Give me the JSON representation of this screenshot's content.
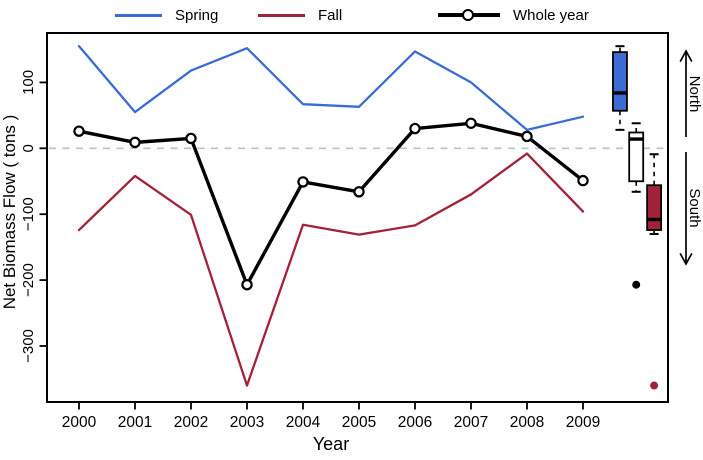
{
  "legend": {
    "items": [
      {
        "label": "Spring",
        "color": "#3b6cd4",
        "marker": "line"
      },
      {
        "label": "Fall",
        "color": "#a12339",
        "marker": "line"
      },
      {
        "label": "Whole year",
        "color": "#000000",
        "marker": "line-circle"
      }
    ]
  },
  "chart_data": {
    "type": "line",
    "title": "",
    "xlabel": "Year",
    "ylabel": "Net Biomass Flow ( tons )",
    "categories": [
      2000,
      2001,
      2002,
      2003,
      2004,
      2005,
      2006,
      2007,
      2008,
      2009
    ],
    "yticks": [
      100,
      0,
      -100,
      -200,
      -300
    ],
    "ylim": [
      -385,
      175
    ],
    "grid": false,
    "legend_position": "top",
    "zero_line": {
      "style": "dashed",
      "value": 0,
      "color": "#b5c4c2"
    },
    "series": [
      {
        "name": "Spring",
        "color": "#3b6cd4",
        "width": 2.3,
        "marker": "none",
        "values": [
          155,
          55,
          118,
          152,
          67,
          63,
          147,
          100,
          28,
          48
        ]
      },
      {
        "name": "Fall",
        "color": "#a12339",
        "width": 2.3,
        "marker": "none",
        "values": [
          -124,
          -42,
          -101,
          -360,
          -116,
          -131,
          -117,
          -70,
          -8,
          -96
        ]
      },
      {
        "name": "Whole year",
        "color": "#000000",
        "width": 3.4,
        "marker": "open-circle",
        "values": [
          26,
          9,
          15,
          -207,
          -51,
          -66,
          30,
          38,
          18,
          -49
        ]
      }
    ],
    "boxplots": [
      {
        "name": "Spring",
        "x": 9.66,
        "fill": "#3b6cd4",
        "lo": 28,
        "q1": 57,
        "median": 84,
        "q3": 146,
        "hi": 155
      },
      {
        "name": "Whole year",
        "x": 9.95,
        "fill": "#ffffff",
        "lo": -66,
        "q1": -50,
        "median": 14,
        "q3": 24,
        "hi": 38
      },
      {
        "name": "Fall",
        "x": 10.27,
        "fill": "#a12339",
        "lo": -130,
        "q1": -124,
        "median": -108,
        "q3": -56,
        "hi": -9
      }
    ],
    "outliers": [
      {
        "series": "Whole year",
        "x": 9.95,
        "value": -207,
        "color": "#000000"
      },
      {
        "series": "Fall",
        "x": 10.27,
        "value": -360,
        "color": "#a12339"
      }
    ],
    "right_annotations": [
      {
        "label": "North",
        "direction": "up"
      },
      {
        "label": "South",
        "direction": "down"
      }
    ]
  }
}
